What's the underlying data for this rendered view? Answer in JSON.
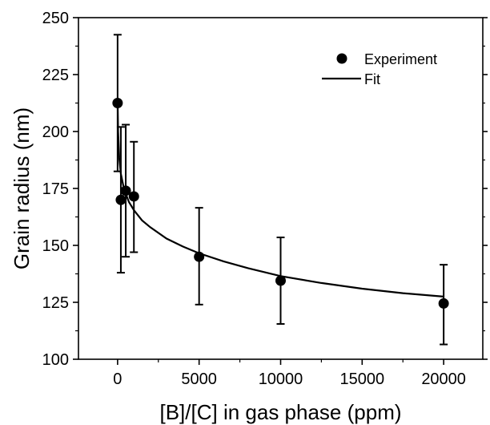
{
  "chart_data": {
    "type": "scatter",
    "xlabel": "[B]/[C] in gas phase (ppm)",
    "ylabel": "Grain radius (nm)",
    "xlim": [
      -2400,
      22400
    ],
    "ylim": [
      100,
      250
    ],
    "xticks": [
      0,
      5000,
      10000,
      15000,
      20000
    ],
    "xtick_labels": [
      "0",
      "5000",
      "10000",
      "15000",
      "20000"
    ],
    "yticks": [
      100,
      125,
      150,
      175,
      200,
      225,
      250
    ],
    "ytick_labels": [
      "100",
      "125",
      "150",
      "175",
      "200",
      "225",
      "250"
    ],
    "grid": false,
    "legend_position": "top-right",
    "series": [
      {
        "name": "Experiment",
        "kind": "points_with_error_bars",
        "x": [
          0,
          200,
          500,
          1000,
          5000,
          10000,
          20000
        ],
        "y": [
          212.5,
          170,
          174,
          171.5,
          145,
          134.5,
          124.5
        ],
        "yerr_low": [
          182.5,
          138,
          145,
          147,
          124,
          115.5,
          106.5
        ],
        "yerr_high": [
          242.5,
          202,
          203,
          195.5,
          166.5,
          153.5,
          141.5
        ]
      },
      {
        "name": "Fit",
        "kind": "line",
        "x": [
          0,
          30,
          100,
          200,
          400,
          700,
          1000,
          1500,
          2000,
          3000,
          4000,
          5000,
          6500,
          8000,
          10000,
          12500,
          15000,
          17500,
          20000
        ],
        "y": [
          213.5,
          200,
          188.5,
          181.5,
          174.5,
          169,
          165.5,
          161,
          158,
          153,
          149.5,
          146.5,
          143,
          140,
          136.5,
          133.5,
          131,
          129,
          127.5
        ]
      }
    ],
    "colors": {
      "marker": "#000000",
      "line": "#000000",
      "axes": "#000000",
      "background": "#ffffff"
    }
  }
}
